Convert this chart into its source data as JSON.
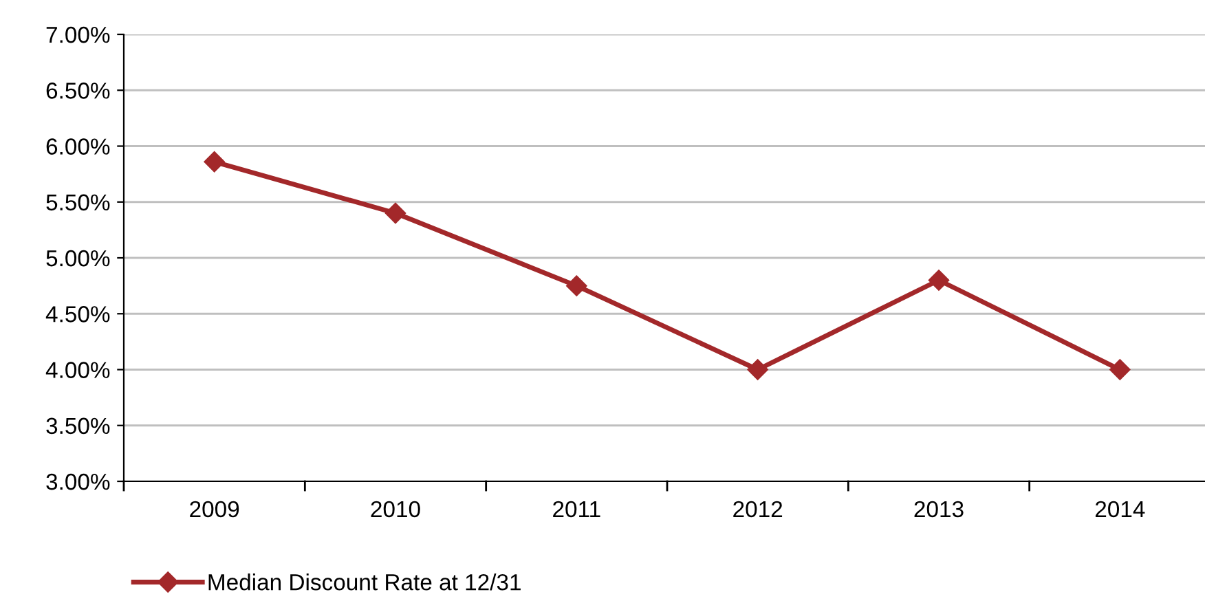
{
  "chart_data": {
    "type": "line",
    "categories": [
      "2009",
      "2010",
      "2011",
      "2012",
      "2013",
      "2014"
    ],
    "series": [
      {
        "name": "Median Discount Rate at 12/31",
        "color": "#a3282a",
        "values": [
          5.86,
          5.4,
          4.75,
          4.0,
          4.8,
          4.0
        ]
      }
    ],
    "ylim": [
      3.0,
      7.0
    ],
    "yticks": [
      {
        "value": 3.0,
        "label": "3.00%"
      },
      {
        "value": 3.5,
        "label": "3.50%"
      },
      {
        "value": 4.0,
        "label": "4.00%"
      },
      {
        "value": 4.5,
        "label": "4.50%"
      },
      {
        "value": 5.0,
        "label": "5.00%"
      },
      {
        "value": 5.5,
        "label": "5.50%"
      },
      {
        "value": 6.0,
        "label": "6.00%"
      },
      {
        "value": 6.5,
        "label": "6.50%"
      },
      {
        "value": 7.0,
        "label": "7.00%"
      }
    ],
    "grid": "y",
    "legend": "bottom left",
    "marker": "diamond",
    "line_style": "solid"
  }
}
